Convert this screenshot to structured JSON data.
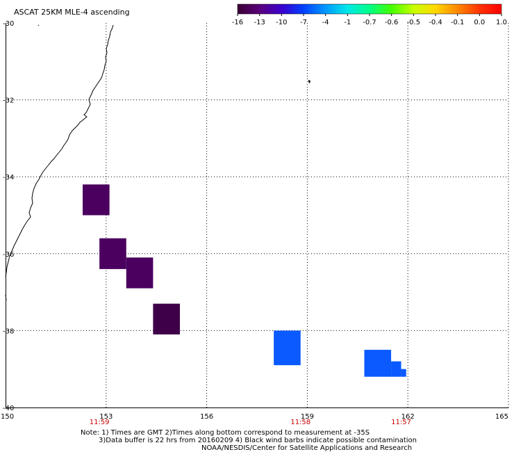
{
  "title": "ASCAT 25KM MLE-4 ascending",
  "legend": {
    "labels": [
      "-16",
      "-13",
      "-10",
      "-7",
      "-4",
      "-1",
      "-0.7",
      "-0.6",
      "-0.5",
      "-0.4",
      "-0.1",
      "0.0",
      "1.0"
    ],
    "colors": [
      "#3a0034",
      "#5a007a",
      "#3a00cc",
      "#0040ff",
      "#0098ff",
      "#00e8e8",
      "#00ff88",
      "#44ff00",
      "#c8ff00",
      "#ffd800",
      "#ff8800",
      "#ff3300",
      "#ff0000"
    ]
  },
  "axes": {
    "lat_labels": [
      "-30",
      "-32",
      "-34",
      "-36",
      "-38",
      "-40"
    ],
    "lat_values": [
      -30,
      -32,
      -34,
      -36,
      -38,
      -40
    ],
    "lon_labels": [
      "150",
      "153",
      "156",
      "159",
      "162",
      "165"
    ],
    "lon_values": [
      150,
      153,
      156,
      159,
      162,
      165
    ]
  },
  "times": [
    {
      "label": "11:59",
      "lon": 152.8
    },
    {
      "label": "11:58",
      "lon": 158.8
    },
    {
      "label": "11:57",
      "lon": 161.8
    }
  ],
  "cells": [
    {
      "lon0": 152.3,
      "lon1": 153.1,
      "lat0": -34.2,
      "lat1": -35.0,
      "color": "#4b005f"
    },
    {
      "lon0": 152.8,
      "lon1": 153.6,
      "lat0": -35.6,
      "lat1": -36.4,
      "color": "#4b005f"
    },
    {
      "lon0": 153.6,
      "lon1": 154.4,
      "lat0": -36.1,
      "lat1": -36.9,
      "color": "#4b005f"
    },
    {
      "lon0": 154.4,
      "lon1": 155.2,
      "lat0": -37.3,
      "lat1": -38.1,
      "color": "#3e0048"
    },
    {
      "lon0": 158.0,
      "lon1": 158.8,
      "lat0": -38.0,
      "lat1": -38.9,
      "color": "#0a5aff"
    },
    {
      "lon0": 160.7,
      "lon1": 161.5,
      "lat0": -38.5,
      "lat1": -39.2,
      "color": "#0a5aff"
    },
    {
      "lon0": 161.5,
      "lon1": 161.8,
      "lat0": -38.8,
      "lat1": -39.2,
      "color": "#0a5aff"
    },
    {
      "lon0": 161.8,
      "lon1": 161.95,
      "lat0": -39.0,
      "lat1": -39.2,
      "color": "#0a5aff"
    }
  ],
  "notes": [
    "Note: 1) Times are GMT 2)Times along bottom correspond to measurement at -35S",
    "3)Data buffer is 22 hrs from 20160209 4) Black wind barbs indicate possible contamination",
    "NOAA/NESDIS/Center for Satellite Applications and Research"
  ]
}
